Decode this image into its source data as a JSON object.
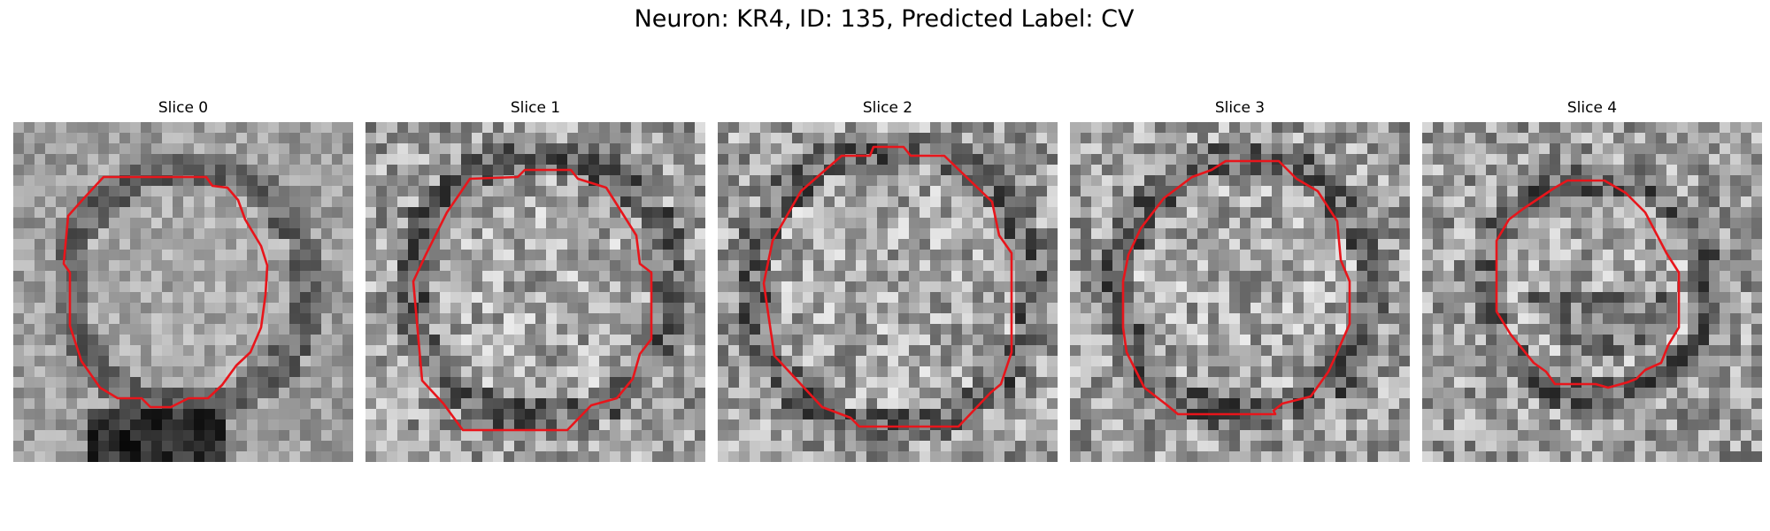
{
  "figure": {
    "title": "Neuron: KR4, ID: 135, Predicted Label: CV"
  },
  "contour_color": "#e8151b",
  "panels": [
    {
      "title": "Slice 0"
    },
    {
      "title": "Slice 1"
    },
    {
      "title": "Slice 2"
    },
    {
      "title": "Slice 3"
    },
    {
      "title": "Slice 4"
    }
  ]
}
